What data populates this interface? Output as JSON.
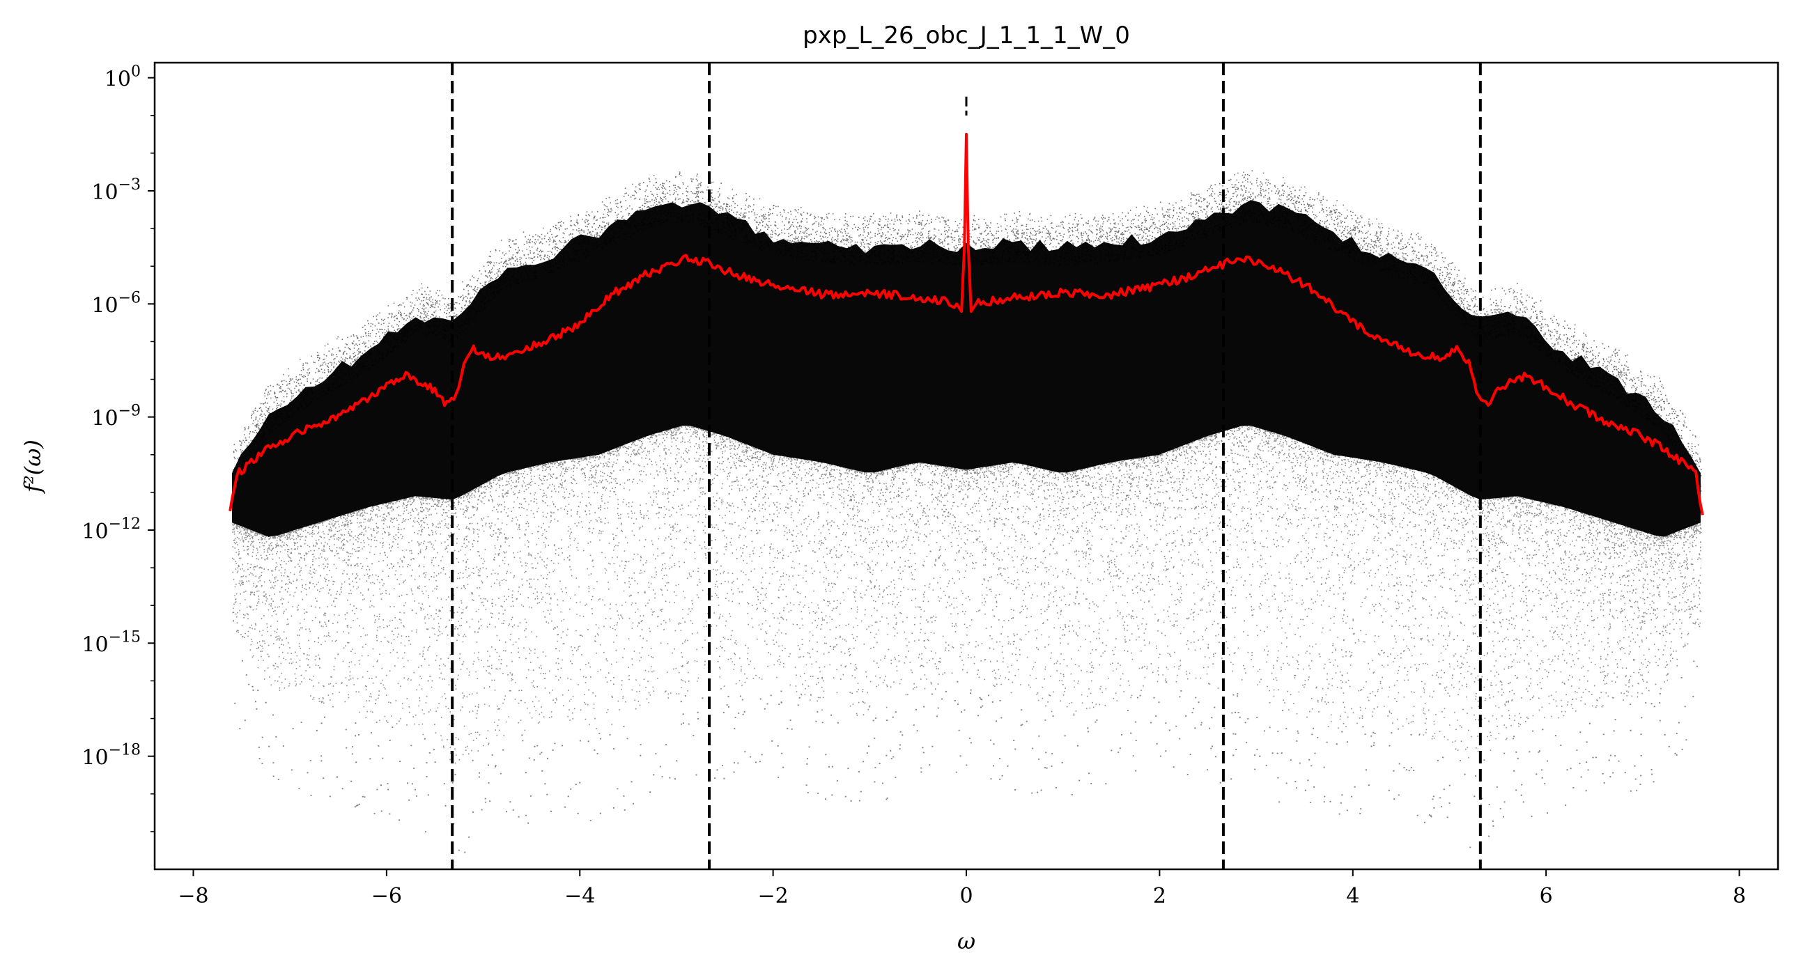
{
  "chart_data": {
    "type": "scatter",
    "title": "pxp_L_26_obc_J_1_1_1_W_0",
    "xlabel": "ω",
    "ylabel": "f²(ω)",
    "xlim": [
      -8.4,
      8.4
    ],
    "ylim_log10": [
      -21,
      0.4
    ],
    "y_scale": "log",
    "grid": false,
    "x_ticks": [
      {
        "value": -8,
        "label": "−8"
      },
      {
        "value": -6,
        "label": "−6"
      },
      {
        "value": -4,
        "label": "−4"
      },
      {
        "value": -2,
        "label": "−2"
      },
      {
        "value": 0,
        "label": "0"
      },
      {
        "value": 2,
        "label": "2"
      },
      {
        "value": 4,
        "label": "4"
      },
      {
        "value": 6,
        "label": "6"
      },
      {
        "value": 8,
        "label": "8"
      }
    ],
    "y_ticks": [
      {
        "log10": 0,
        "label": "10",
        "exponent": "0"
      },
      {
        "log10": -3,
        "label": "10",
        "exponent": "−3"
      },
      {
        "log10": -6,
        "label": "10",
        "exponent": "−6"
      },
      {
        "log10": -9,
        "label": "10",
        "exponent": "−9"
      },
      {
        "log10": -12,
        "label": "10",
        "exponent": "−12"
      },
      {
        "log10": -15,
        "label": "10",
        "exponent": "−15"
      },
      {
        "log10": -18,
        "label": "10",
        "exponent": "−18"
      }
    ],
    "vertical_dashed_lines_x": [
      -5.32,
      -2.66,
      2.66,
      5.32
    ],
    "center_peak": {
      "x": 0,
      "log10_top": -0.5,
      "log10_bottom": -1.0
    },
    "scatter_series": {
      "color": "#000000",
      "omega_range": [
        -7.6,
        7.6
      ],
      "band_log10": [
        {
          "x": 0.0,
          "top": -3.6,
          "core_bottom": -11.2,
          "sparse_bottom": -15.8
        },
        {
          "x": 0.5,
          "top": -3.5,
          "core_bottom": -11.0,
          "sparse_bottom": -16.5
        },
        {
          "x": 1.0,
          "top": -3.6,
          "core_bottom": -11.3,
          "sparse_bottom": -17.0
        },
        {
          "x": 1.5,
          "top": -3.5,
          "core_bottom": -11.0,
          "sparse_bottom": -16.8
        },
        {
          "x": 2.0,
          "top": -3.3,
          "core_bottom": -10.8,
          "sparse_bottom": -16.0
        },
        {
          "x": 2.5,
          "top": -2.8,
          "core_bottom": -10.3,
          "sparse_bottom": -16.2
        },
        {
          "x": 2.9,
          "top": -2.4,
          "core_bottom": -10.0,
          "sparse_bottom": -16.3
        },
        {
          "x": 3.3,
          "top": -2.6,
          "core_bottom": -10.3,
          "sparse_bottom": -16.8
        },
        {
          "x": 3.8,
          "top": -3.2,
          "core_bottom": -10.8,
          "sparse_bottom": -17.3
        },
        {
          "x": 4.3,
          "top": -3.8,
          "core_bottom": -11.0,
          "sparse_bottom": -17.0
        },
        {
          "x": 4.8,
          "top": -4.2,
          "core_bottom": -11.3,
          "sparse_bottom": -17.6
        },
        {
          "x": 5.3,
          "top": -5.6,
          "core_bottom": -12.0,
          "sparse_bottom": -18.2
        },
        {
          "x": 5.7,
          "top": -5.4,
          "core_bottom": -11.9,
          "sparse_bottom": -17.3
        },
        {
          "x": 6.2,
          "top": -6.4,
          "core_bottom": -12.2,
          "sparse_bottom": -17.0
        },
        {
          "x": 6.7,
          "top": -7.1,
          "core_bottom": -12.6,
          "sparse_bottom": -16.6
        },
        {
          "x": 7.2,
          "top": -8.0,
          "core_bottom": -13.0,
          "sparse_bottom": -16.3
        },
        {
          "x": 7.6,
          "top": -9.6,
          "core_bottom": -12.6,
          "sparse_bottom": -14.5
        }
      ]
    },
    "running_mean_series": {
      "color": "#ff0000",
      "points": [
        {
          "x": 0.0,
          "log10": -1.5
        },
        {
          "x": 0.02,
          "log10": -4.5
        },
        {
          "x": 0.05,
          "log10": -6.2
        },
        {
          "x": 0.1,
          "log10": -6.0
        },
        {
          "x": 0.3,
          "log10": -5.9
        },
        {
          "x": 0.6,
          "log10": -5.8
        },
        {
          "x": 1.0,
          "log10": -5.7
        },
        {
          "x": 1.5,
          "log10": -5.75
        },
        {
          "x": 2.0,
          "log10": -5.5
        },
        {
          "x": 2.4,
          "log10": -5.2
        },
        {
          "x": 2.7,
          "log10": -4.9
        },
        {
          "x": 2.9,
          "log10": -4.8
        },
        {
          "x": 3.1,
          "log10": -5.0
        },
        {
          "x": 3.3,
          "log10": -5.2
        },
        {
          "x": 3.5,
          "log10": -5.5
        },
        {
          "x": 3.7,
          "log10": -5.8
        },
        {
          "x": 3.9,
          "log10": -6.3
        },
        {
          "x": 4.0,
          "log10": -6.5
        },
        {
          "x": 4.2,
          "log10": -6.8
        },
        {
          "x": 4.4,
          "log10": -7.0
        },
        {
          "x": 4.6,
          "log10": -7.3
        },
        {
          "x": 4.9,
          "log10": -7.4
        },
        {
          "x": 5.1,
          "log10": -7.2
        },
        {
          "x": 5.2,
          "log10": -7.6
        },
        {
          "x": 5.28,
          "log10": -8.4
        },
        {
          "x": 5.4,
          "log10": -8.6
        },
        {
          "x": 5.55,
          "log10": -8.2
        },
        {
          "x": 5.8,
          "log10": -7.9
        },
        {
          "x": 6.0,
          "log10": -8.2
        },
        {
          "x": 6.3,
          "log10": -8.7
        },
        {
          "x": 6.6,
          "log10": -9.1
        },
        {
          "x": 6.9,
          "log10": -9.4
        },
        {
          "x": 7.2,
          "log10": -9.8
        },
        {
          "x": 7.4,
          "log10": -10.2
        },
        {
          "x": 7.55,
          "log10": -10.5
        },
        {
          "x": 7.62,
          "log10": -11.6
        }
      ]
    }
  }
}
